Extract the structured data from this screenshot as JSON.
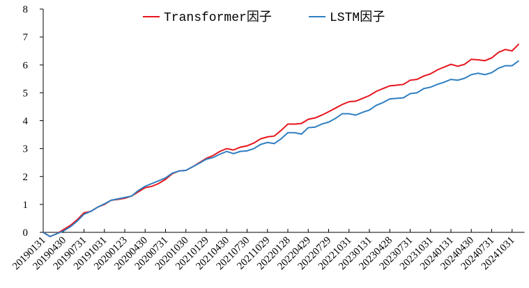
{
  "chart_data": {
    "type": "line",
    "categories": [
      "20190131",
      null,
      null,
      "20190430",
      null,
      null,
      "20190731",
      null,
      null,
      "20191031",
      null,
      null,
      "20200123",
      null,
      null,
      "20200430",
      null,
      null,
      "20200731",
      null,
      null,
      "20201030",
      null,
      null,
      "20210129",
      null,
      null,
      "20210430",
      null,
      null,
      "20210730",
      null,
      null,
      "20211029",
      null,
      null,
      "20220128",
      null,
      null,
      "20220429",
      null,
      null,
      "20220729",
      null,
      null,
      "20221031",
      null,
      null,
      "20230131",
      null,
      null,
      "20230428",
      null,
      null,
      "20230731",
      null,
      null,
      "20231031",
      null,
      null,
      "20240131",
      null,
      null,
      "20240430",
      null,
      null,
      "20240731",
      null,
      null,
      "20241031",
      null
    ],
    "series": [
      {
        "name": "Transformer因子",
        "color": "#e8141c",
        "values": [
          0,
          -0.15,
          -0.05,
          0.1,
          0.25,
          0.45,
          0.7,
          0.75,
          0.9,
          1.0,
          1.15,
          1.18,
          1.22,
          1.3,
          1.45,
          1.6,
          1.65,
          1.75,
          1.9,
          2.1,
          2.2,
          2.22,
          2.35,
          2.5,
          2.65,
          2.75,
          2.9,
          3.0,
          2.95,
          3.05,
          3.1,
          3.2,
          3.35,
          3.42,
          3.45,
          3.65,
          3.88,
          3.88,
          3.9,
          4.05,
          4.1,
          4.2,
          4.32,
          4.45,
          4.58,
          4.68,
          4.7,
          4.8,
          4.9,
          5.05,
          5.15,
          5.25,
          5.27,
          5.3,
          5.45,
          5.48,
          5.6,
          5.68,
          5.82,
          5.92,
          6.02,
          5.95,
          6.02,
          6.2,
          6.18,
          6.15,
          6.25,
          6.45,
          6.55,
          6.5,
          6.75
        ]
      },
      {
        "name": "LSTM因子",
        "color": "#2f7fc1",
        "values": [
          0,
          -0.15,
          -0.05,
          0.05,
          0.2,
          0.4,
          0.65,
          0.75,
          0.9,
          1.02,
          1.15,
          1.2,
          1.25,
          1.3,
          1.5,
          1.65,
          1.75,
          1.85,
          1.95,
          2.12,
          2.2,
          2.22,
          2.35,
          2.48,
          2.62,
          2.68,
          2.8,
          2.9,
          2.82,
          2.9,
          2.92,
          3.0,
          3.15,
          3.22,
          3.18,
          3.35,
          3.57,
          3.57,
          3.52,
          3.75,
          3.77,
          3.88,
          3.95,
          4.08,
          4.25,
          4.25,
          4.2,
          4.3,
          4.38,
          4.55,
          4.65,
          4.78,
          4.8,
          4.82,
          4.97,
          5.0,
          5.15,
          5.2,
          5.3,
          5.38,
          5.48,
          5.45,
          5.52,
          5.65,
          5.7,
          5.65,
          5.72,
          5.88,
          5.97,
          5.97,
          6.15
        ]
      }
    ],
    "ylim": [
      0,
      8
    ],
    "yticks": [
      0,
      1,
      2,
      3,
      4,
      5,
      6,
      7,
      8
    ],
    "legend": "top"
  }
}
